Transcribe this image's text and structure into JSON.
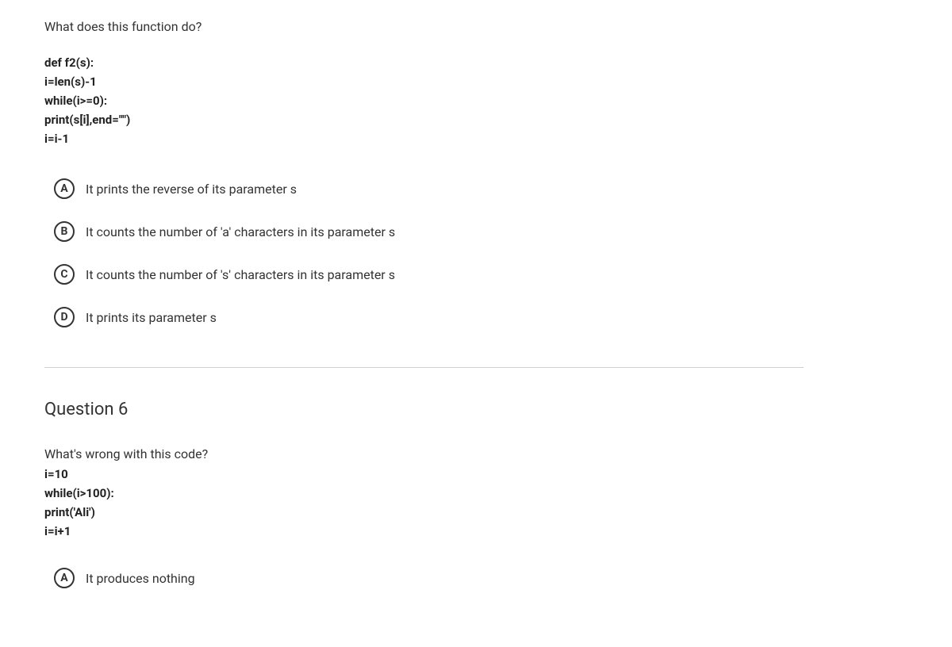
{
  "q5": {
    "prompt": "What does this function do?",
    "code": [
      "def f2(s):",
      " i=len(s)-1",
      " while(i>=0):",
      " print(s[i],end=\"\")",
      " i=i-1"
    ],
    "options": [
      {
        "letter": "A",
        "text": "It prints the reverse of its parameter s"
      },
      {
        "letter": "B",
        "text": "It counts the number of 'a' characters in its parameter s"
      },
      {
        "letter": "C",
        "text": "It counts the number of 's' characters in its parameter s"
      },
      {
        "letter": "D",
        "text": "It prints its parameter s"
      }
    ]
  },
  "q6": {
    "title": "Question 6",
    "prompt": "What's wrong with this code?",
    "code": [
      "i=10",
      "while(i>100):",
      "print('Ali')",
      "i=i+1"
    ],
    "options": [
      {
        "letter": "A",
        "text": "It produces nothing"
      }
    ]
  }
}
